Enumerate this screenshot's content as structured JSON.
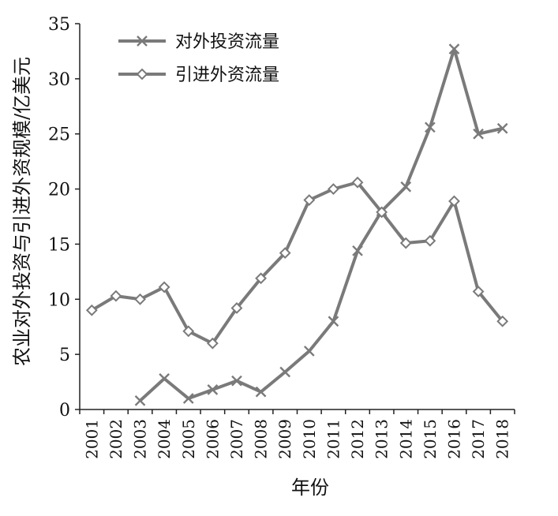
{
  "chart_data": {
    "type": "line",
    "categories": [
      "2001",
      "2002",
      "2003",
      "2004",
      "2005",
      "2006",
      "2007",
      "2008",
      "2009",
      "2010",
      "2011",
      "2012",
      "2013",
      "2014",
      "2015",
      "2016",
      "2017",
      "2018"
    ],
    "xlabel": "年份",
    "ylabel": "农业对外投资与引进外资规模/亿美元",
    "ylim": [
      0,
      35
    ],
    "yticks": [
      0,
      5,
      10,
      15,
      20,
      25,
      30,
      35
    ],
    "grid": false,
    "legend": "top-left",
    "series": [
      {
        "name": "对外投资流量",
        "marker": "x",
        "color": "#7a7a7a",
        "values": [
          null,
          null,
          0.8,
          2.8,
          1.0,
          1.8,
          2.6,
          1.6,
          3.4,
          5.3,
          8.0,
          14.4,
          18.0,
          20.2,
          25.6,
          32.7,
          25.0,
          25.5
        ]
      },
      {
        "name": "引进外资流量",
        "marker": "diamond",
        "color": "#7a7a7a",
        "values": [
          9.0,
          10.3,
          10.0,
          11.1,
          7.1,
          6.0,
          9.2,
          11.9,
          14.2,
          19.0,
          20.0,
          20.6,
          17.9,
          15.1,
          15.3,
          18.9,
          10.7,
          8.0
        ]
      }
    ]
  }
}
